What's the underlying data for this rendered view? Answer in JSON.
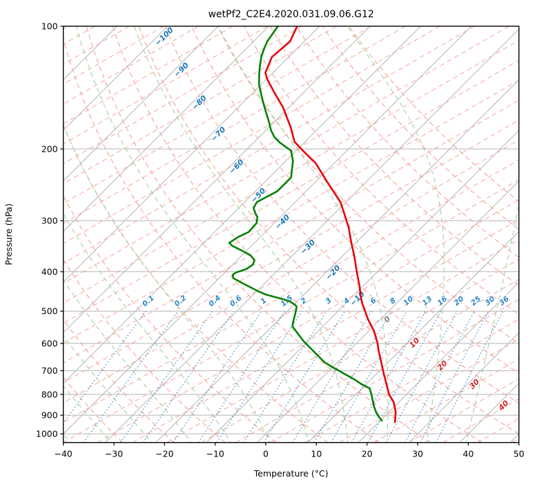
{
  "figure": {
    "title": "wetPf2_C2E4.2020.031.09.06.G12",
    "xlabel": "Temperature (°C)",
    "ylabel": "Pressure (hPa)"
  },
  "chart_data": {
    "type": "line",
    "subtype": "skewT-logP-sounding",
    "title": "wetPf2_C2E4.2020.031.09.06.G12",
    "xlabel": "Temperature (°C)",
    "ylabel": "Pressure (hPa)",
    "xlim": [
      -40,
      50
    ],
    "pressure_lim": [
      100,
      1050
    ],
    "x_ticks": [
      -40,
      -30,
      -20,
      -10,
      0,
      10,
      20,
      30,
      40,
      50
    ],
    "p_ticks": [
      100,
      200,
      300,
      400,
      500,
      600,
      700,
      800,
      900,
      1000
    ],
    "skew_c_per_decade": 80.6,
    "grid": true,
    "legend": "none",
    "colors": {
      "grid": "#b3b3b3",
      "spine": "#000000",
      "dry_adiabat": "#f6a79e",
      "moist_adiabat": "#a9d3a4",
      "mixing_line": "#4b93d1",
      "mixing_label": "#2d87c8",
      "isotherm_label_cold": "#1f77b4",
      "isotherm_label_zero": "#808080",
      "isotherm_label_warm": "#d62728",
      "temperature_curve": "#e8000b",
      "dewpoint_curve": "#008000"
    },
    "isotherm_step_c": 10,
    "isotherm_labels": [
      {
        "t": -100,
        "p": 106,
        "color_key": "isotherm_label_cold"
      },
      {
        "t": -90,
        "p": 128,
        "color_key": "isotherm_label_cold"
      },
      {
        "t": -80,
        "p": 154,
        "color_key": "isotherm_label_cold"
      },
      {
        "t": -70,
        "p": 184,
        "color_key": "isotherm_label_cold"
      },
      {
        "t": -60,
        "p": 221,
        "color_key": "isotherm_label_cold"
      },
      {
        "t": -50,
        "p": 260,
        "color_key": "isotherm_label_cold"
      },
      {
        "t": -40,
        "p": 302,
        "color_key": "isotherm_label_cold"
      },
      {
        "t": -30,
        "p": 348,
        "color_key": "isotherm_label_cold"
      },
      {
        "t": -20,
        "p": 402,
        "color_key": "isotherm_label_cold"
      },
      {
        "t": -10,
        "p": 466,
        "color_key": "isotherm_label_cold"
      },
      {
        "t": 0,
        "p": 524,
        "color_key": "isotherm_label_zero"
      },
      {
        "t": 10,
        "p": 598,
        "color_key": "isotherm_label_warm"
      },
      {
        "t": 20,
        "p": 680,
        "color_key": "isotherm_label_warm"
      },
      {
        "t": 30,
        "p": 755,
        "color_key": "isotherm_label_warm"
      },
      {
        "t": 40,
        "p": 852,
        "color_key": "isotherm_label_warm"
      }
    ],
    "dry_adiabats_theta_c": [
      -30,
      -20,
      -10,
      0,
      10,
      20,
      30,
      40,
      50,
      60,
      70,
      80,
      90,
      100,
      110,
      120,
      130
    ],
    "moist_adiabats_theta_w_c": [
      -64,
      -56,
      -48,
      -40,
      -32,
      -24,
      -16,
      -8,
      0,
      8,
      16,
      24,
      32,
      40
    ],
    "aux_dashed_family": {
      "angle_deg_from_horizontal": 30,
      "horizontal_spacing_px": 50
    },
    "mixing_ratio": {
      "values_g_kg": [
        0.1,
        0.2,
        0.4,
        0.6,
        1,
        1.5,
        2,
        3,
        4,
        6,
        8,
        10,
        13,
        16,
        20,
        25,
        30,
        36
      ],
      "label_pressure_hpa": 486,
      "line_pressure_range_hpa": [
        1050,
        500
      ]
    },
    "series": [
      {
        "name": "temperature",
        "color_key": "temperature_curve",
        "points_p_t": [
          [
            100,
            -74.4
          ],
          [
            109,
            -72.8
          ],
          [
            119,
            -73.3
          ],
          [
            130,
            -71.5
          ],
          [
            135,
            -69.8
          ],
          [
            146,
            -65.6
          ],
          [
            158,
            -61.2
          ],
          [
            177,
            -55.7
          ],
          [
            192,
            -52.1
          ],
          [
            203,
            -48.3
          ],
          [
            217,
            -43.6
          ],
          [
            240,
            -37.9
          ],
          [
            270,
            -31.1
          ],
          [
            291,
            -27.6
          ],
          [
            312,
            -24.4
          ],
          [
            338,
            -21.1
          ],
          [
            367,
            -17.6
          ],
          [
            402,
            -13.9
          ],
          [
            434,
            -10.7
          ],
          [
            466,
            -7.9
          ],
          [
            479,
            -6.7
          ],
          [
            522,
            -2.6
          ],
          [
            560,
            1.1
          ],
          [
            600,
            4.2
          ],
          [
            623,
            5.7
          ],
          [
            662,
            8.3
          ],
          [
            715,
            11.6
          ],
          [
            755,
            14.0
          ],
          [
            801,
            16.6
          ],
          [
            836,
            19.0
          ],
          [
            883,
            21.3
          ],
          [
            936,
            23.2
          ]
        ]
      },
      {
        "name": "dewpoint",
        "color_key": "dewpoint_curve",
        "points_p_t": [
          [
            100,
            -78.2
          ],
          [
            104,
            -77.8
          ],
          [
            109,
            -77.3
          ],
          [
            114,
            -76.4
          ],
          [
            119,
            -75.4
          ],
          [
            126,
            -73.7
          ],
          [
            132,
            -72.2
          ],
          [
            139,
            -70.4
          ],
          [
            146,
            -68.3
          ],
          [
            154,
            -66.0
          ],
          [
            162,
            -63.7
          ],
          [
            170,
            -61.5
          ],
          [
            180,
            -59.0
          ],
          [
            187,
            -57.0
          ],
          [
            193,
            -54.8
          ],
          [
            202,
            -51.0
          ],
          [
            214,
            -48.6
          ],
          [
            235,
            -45.7
          ],
          [
            254,
            -45.7
          ],
          [
            270,
            -47.6
          ],
          [
            279,
            -47.1
          ],
          [
            287,
            -45.8
          ],
          [
            294,
            -44.5
          ],
          [
            304,
            -43.5
          ],
          [
            320,
            -43.3
          ],
          [
            329,
            -44.4
          ],
          [
            340,
            -45.0
          ],
          [
            346,
            -43.7
          ],
          [
            355,
            -41.0
          ],
          [
            365,
            -38.3
          ],
          [
            374,
            -36.7
          ],
          [
            384,
            -36.0
          ],
          [
            394,
            -36.4
          ],
          [
            402,
            -37.8
          ],
          [
            407,
            -38.0
          ],
          [
            415,
            -37.2
          ],
          [
            426,
            -34.6
          ],
          [
            437,
            -32.0
          ],
          [
            446,
            -29.9
          ],
          [
            455,
            -27.6
          ],
          [
            461,
            -25.5
          ],
          [
            467,
            -23.3
          ],
          [
            473,
            -21.5
          ],
          [
            482,
            -19.8
          ],
          [
            488,
            -19.0
          ],
          [
            508,
            -17.9
          ],
          [
            528,
            -16.9
          ],
          [
            545,
            -16.0
          ],
          [
            593,
            -10.8
          ],
          [
            667,
            -2.6
          ],
          [
            688,
            0.3
          ],
          [
            715,
            4.0
          ],
          [
            735,
            6.7
          ],
          [
            758,
            9.4
          ],
          [
            773,
            11.5
          ],
          [
            801,
            13.1
          ],
          [
            826,
            14.4
          ],
          [
            859,
            16.1
          ],
          [
            883,
            17.4
          ],
          [
            904,
            18.7
          ],
          [
            928,
            20.3
          ]
        ]
      }
    ]
  }
}
